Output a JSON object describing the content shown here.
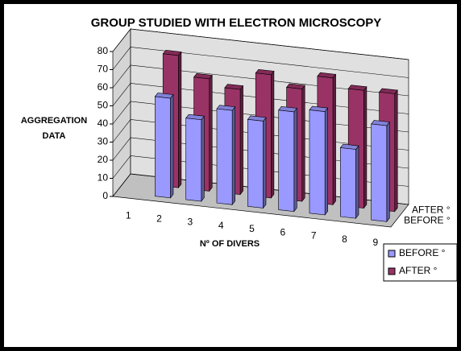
{
  "chart_data": {
    "type": "bar3d",
    "title": "GROUP STUDIED WITH ELECTRON MICROSCOPY",
    "x_label": "Nº OF DIVERS",
    "y_label": "AGGREGATION DATA",
    "categories": [
      "1",
      "2",
      "3",
      "4",
      "5",
      "6",
      "7",
      "8",
      "9"
    ],
    "series": [
      {
        "name": "BEFORE °",
        "color": "#9999ff",
        "values": [
          null,
          55,
          45,
          52,
          48,
          55,
          57,
          38,
          53
        ]
      },
      {
        "name": "AFTER  °",
        "color": "#993366",
        "values": [
          null,
          73,
          62,
          58,
          68,
          62,
          70,
          65,
          65
        ]
      }
    ],
    "ylim": [
      0,
      80
    ],
    "yticks": [
      0,
      10,
      20,
      30,
      40,
      50,
      60,
      70,
      80
    ],
    "grid": true,
    "legend": "right"
  }
}
